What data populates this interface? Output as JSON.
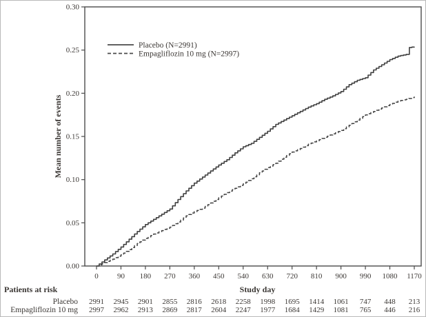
{
  "figure": {
    "background": "#ffffff",
    "frame_color": "#4a4a4a",
    "ink_color": "#3b3734",
    "outer_border_color": "#b9b9b9"
  },
  "chart_data": {
    "type": "line",
    "title": "",
    "xlabel": "Study day",
    "ylabel": "Mean number of events",
    "xlim": [
      0,
      1170
    ],
    "ylim": [
      0,
      0.3
    ],
    "xticks": [
      0,
      90,
      180,
      270,
      360,
      450,
      540,
      630,
      720,
      810,
      900,
      990,
      1080,
      1170
    ],
    "yticks": [
      0.0,
      0.05,
      0.1,
      0.15,
      0.2,
      0.25,
      0.3
    ],
    "ytick_labels": [
      "0.00",
      "0.05",
      "0.10",
      "0.15",
      "0.20",
      "0.25",
      "0.30"
    ],
    "grid": false,
    "legend": {
      "position": "inside-top-left",
      "entries": [
        {
          "label": "Placebo (N=2991)",
          "line_style": "solid"
        },
        {
          "label": "Empagliflozin 10 mg (N=2997)",
          "line_style": "dashed"
        }
      ]
    },
    "series": [
      {
        "name": "Placebo (N=2991)",
        "line_style": "solid",
        "color": "#3f3f3f",
        "points": [
          [
            0,
            0.0
          ],
          [
            30,
            0.007
          ],
          [
            60,
            0.014
          ],
          [
            90,
            0.022
          ],
          [
            120,
            0.031
          ],
          [
            150,
            0.04
          ],
          [
            180,
            0.048
          ],
          [
            210,
            0.054
          ],
          [
            240,
            0.06
          ],
          [
            270,
            0.066
          ],
          [
            300,
            0.077
          ],
          [
            330,
            0.087
          ],
          [
            360,
            0.096
          ],
          [
            390,
            0.103
          ],
          [
            420,
            0.11
          ],
          [
            450,
            0.117
          ],
          [
            480,
            0.123
          ],
          [
            510,
            0.131
          ],
          [
            540,
            0.138
          ],
          [
            570,
            0.142
          ],
          [
            600,
            0.149
          ],
          [
            630,
            0.156
          ],
          [
            660,
            0.164
          ],
          [
            690,
            0.169
          ],
          [
            720,
            0.174
          ],
          [
            750,
            0.179
          ],
          [
            780,
            0.184
          ],
          [
            810,
            0.188
          ],
          [
            840,
            0.193
          ],
          [
            870,
            0.197
          ],
          [
            900,
            0.202
          ],
          [
            930,
            0.21
          ],
          [
            960,
            0.215
          ],
          [
            990,
            0.218
          ],
          [
            1020,
            0.227
          ],
          [
            1050,
            0.233
          ],
          [
            1080,
            0.239
          ],
          [
            1110,
            0.243
          ],
          [
            1140,
            0.245
          ],
          [
            1152,
            0.253
          ],
          [
            1170,
            0.254
          ]
        ]
      },
      {
        "name": "Empagliflozin 10 mg (N=2997)",
        "line_style": "dashed",
        "color": "#3f3f3f",
        "points": [
          [
            0,
            0.0
          ],
          [
            30,
            0.004
          ],
          [
            60,
            0.008
          ],
          [
            90,
            0.013
          ],
          [
            120,
            0.019
          ],
          [
            150,
            0.026
          ],
          [
            180,
            0.032
          ],
          [
            210,
            0.037
          ],
          [
            240,
            0.041
          ],
          [
            270,
            0.045
          ],
          [
            300,
            0.051
          ],
          [
            330,
            0.058
          ],
          [
            360,
            0.063
          ],
          [
            390,
            0.067
          ],
          [
            420,
            0.073
          ],
          [
            450,
            0.079
          ],
          [
            480,
            0.085
          ],
          [
            510,
            0.09
          ],
          [
            540,
            0.095
          ],
          [
            570,
            0.101
          ],
          [
            600,
            0.108
          ],
          [
            630,
            0.114
          ],
          [
            660,
            0.119
          ],
          [
            690,
            0.126
          ],
          [
            720,
            0.132
          ],
          [
            750,
            0.136
          ],
          [
            780,
            0.141
          ],
          [
            810,
            0.145
          ],
          [
            840,
            0.149
          ],
          [
            870,
            0.153
          ],
          [
            900,
            0.157
          ],
          [
            930,
            0.163
          ],
          [
            960,
            0.169
          ],
          [
            990,
            0.175
          ],
          [
            1020,
            0.179
          ],
          [
            1050,
            0.183
          ],
          [
            1080,
            0.187
          ],
          [
            1110,
            0.191
          ],
          [
            1140,
            0.193
          ],
          [
            1170,
            0.196
          ]
        ]
      }
    ]
  },
  "risk_table": {
    "title": "Patients at risk",
    "rows": [
      {
        "label": "Placebo",
        "values": [
          2991,
          2945,
          2901,
          2855,
          2816,
          2618,
          2258,
          1998,
          1695,
          1414,
          1061,
          747,
          448,
          213
        ]
      },
      {
        "label": "Empagliflozin 10 mg",
        "values": [
          2997,
          2962,
          2913,
          2869,
          2817,
          2604,
          2247,
          1977,
          1684,
          1429,
          1081,
          765,
          446,
          216
        ]
      }
    ]
  }
}
